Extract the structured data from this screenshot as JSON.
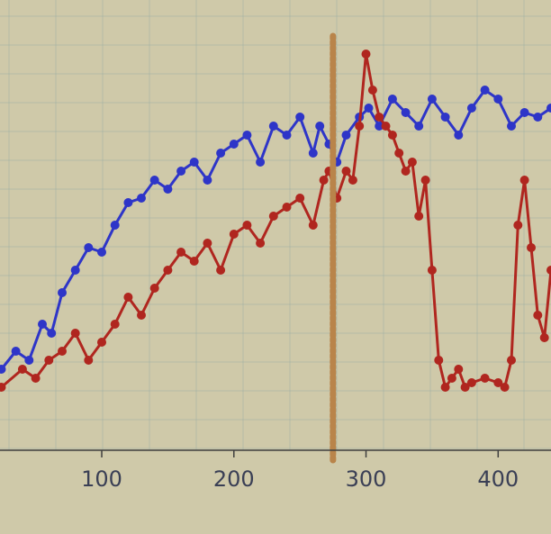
{
  "chart_data": {
    "type": "line",
    "title": "",
    "xlabel": "",
    "ylabel": "",
    "xlim": [
      23,
      440
    ],
    "ylim": [
      0,
      100
    ],
    "grid": true,
    "x_ticks": [
      "100",
      "200",
      "300",
      "400"
    ],
    "x_tick_values": [
      100,
      200,
      300,
      400
    ],
    "vline": {
      "x": 275,
      "color": "#b9844a",
      "style": "dotted"
    },
    "series": [
      {
        "color": "#2e35c8",
        "marker": "circle",
        "x": [
          24,
          35,
          45,
          55,
          62,
          70,
          80,
          90,
          100,
          110,
          120,
          130,
          140,
          150,
          160,
          170,
          180,
          190,
          200,
          210,
          220,
          230,
          240,
          250,
          260,
          265,
          272,
          278,
          285,
          295,
          302,
          310,
          320,
          330,
          340,
          350,
          360,
          370,
          380,
          390,
          400,
          410,
          420,
          430,
          440
        ],
        "y": [
          18,
          22,
          20,
          28,
          26,
          35,
          40,
          45,
          44,
          50,
          55,
          56,
          60,
          58,
          62,
          64,
          60,
          66,
          68,
          70,
          64,
          72,
          70,
          74,
          66,
          72,
          68,
          64,
          70,
          74,
          76,
          72,
          78,
          75,
          72,
          78,
          74,
          70,
          76,
          80,
          78,
          72,
          75,
          74,
          76
        ]
      },
      {
        "color": "#b0261f",
        "marker": "circle",
        "x": [
          24,
          40,
          50,
          60,
          70,
          80,
          90,
          100,
          110,
          120,
          130,
          140,
          150,
          160,
          170,
          180,
          190,
          200,
          210,
          220,
          230,
          240,
          250,
          260,
          268,
          272,
          278,
          285,
          290,
          295,
          300,
          305,
          310,
          315,
          320,
          325,
          330,
          335,
          340,
          345,
          350,
          355,
          360,
          365,
          370,
          375,
          380,
          390,
          400,
          405,
          410,
          415,
          420,
          425,
          430,
          435,
          440
        ],
        "y": [
          14,
          18,
          16,
          20,
          22,
          26,
          20,
          24,
          28,
          34,
          30,
          36,
          40,
          44,
          42,
          46,
          40,
          48,
          50,
          46,
          52,
          54,
          56,
          50,
          60,
          62,
          56,
          62,
          60,
          72,
          88,
          80,
          74,
          72,
          70,
          66,
          62,
          64,
          52,
          60,
          40,
          20,
          14,
          16,
          18,
          14,
          15,
          16,
          15,
          14,
          20,
          50,
          60,
          45,
          30,
          25,
          40
        ]
      }
    ]
  }
}
